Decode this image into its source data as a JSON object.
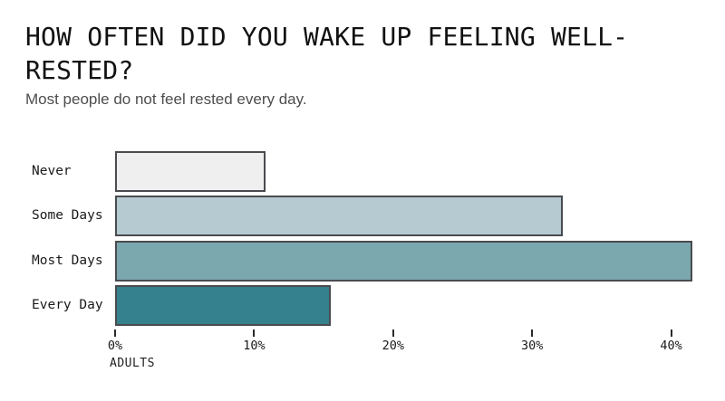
{
  "header": {
    "title_lines": [
      "HOW OFTEN DID YOU WAKE UP FEELING WELL-",
      "RESTED?"
    ],
    "subtitle": "Most people do not feel rested every day."
  },
  "chart_data": {
    "type": "bar",
    "orientation": "horizontal",
    "title": "HOW OFTEN DID YOU WAKE UP FEELING WELL-RESTED?",
    "subtitle": "Most people do not feel rested every day.",
    "categories": [
      "Never",
      "Some Days",
      "Most Days",
      "Every Day"
    ],
    "values": [
      10.8,
      32.2,
      41.5,
      15.5
    ],
    "unit": "percent",
    "bar_colors": [
      "#efefef",
      "#b5cbd1",
      "#7ba7ae",
      "#36818e"
    ],
    "bar_border_color": "#4a4b4f",
    "xlabel": "ADULTS",
    "x_ticks": [
      "0%",
      "10%",
      "20%",
      "30%",
      "40%"
    ],
    "x_tick_values": [
      0,
      10,
      20,
      30,
      40
    ],
    "xlim": [
      0,
      41.5
    ],
    "grid": false,
    "legend": false
  }
}
